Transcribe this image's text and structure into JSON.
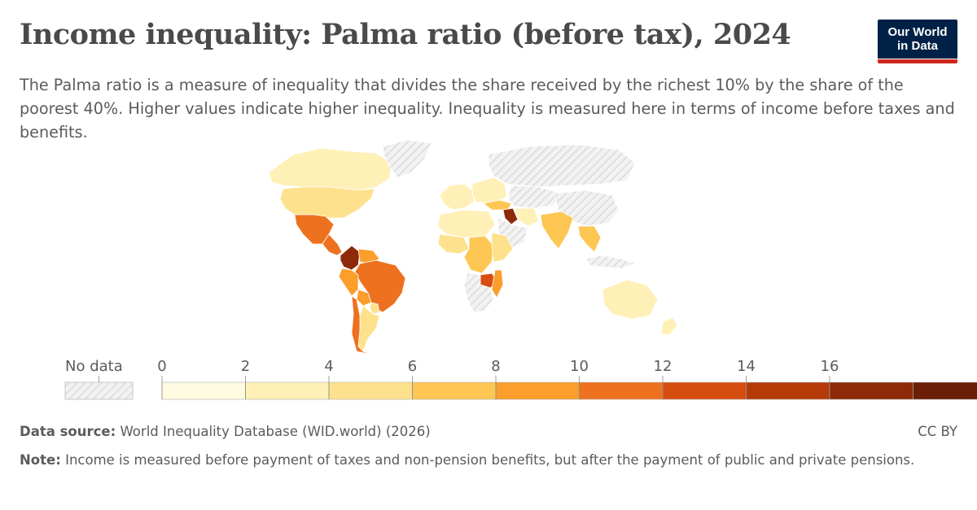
{
  "header": {
    "title": "Income inequality: Palma ratio (before tax), 2024",
    "subtitle": "The Palma ratio is a measure of inequality that divides the share received by the richest 10% by the share of the poorest 40%. Higher values indicate higher inequality. Inequality is measured here in terms of income before taxes and benefits."
  },
  "logo": {
    "line1": "Our World",
    "line2": "in Data",
    "bg_color": "#002147",
    "accent_color": "#ce261e"
  },
  "legend": {
    "no_data_label": "No data",
    "ticks": [
      "0",
      "2",
      "4",
      "6",
      "8",
      "10",
      "12",
      "14",
      "16"
    ],
    "bin_colors": [
      "#fffbe0",
      "#fff0b7",
      "#fee18d",
      "#fec652",
      "#fb9e2c",
      "#ee7120",
      "#d64d0f",
      "#b53a08",
      "#8e2a09",
      "#6b1f06"
    ]
  },
  "footer": {
    "source_label": "Data source:",
    "source_text": " World Inequality Database (WID.world) (2026)",
    "license": "CC BY",
    "note_label": "Note:",
    "note_text": " Income is measured before payment of taxes and non-pension benefits, but after the payment of public and private pensions."
  },
  "chart_data": {
    "type": "choropleth",
    "year": "2024",
    "scale": {
      "min": 0,
      "max": 16,
      "bin_width": 2,
      "open_ended_above": true
    },
    "regions": [
      {
        "name": "Canada",
        "value": 3.2
      },
      {
        "name": "United States",
        "value": 4.8
      },
      {
        "name": "Greenland",
        "value": null
      },
      {
        "name": "Mexico",
        "value": 11.5
      },
      {
        "name": "Central America",
        "value": 11
      },
      {
        "name": "Colombia",
        "value": 17
      },
      {
        "name": "Venezuela",
        "value": 9
      },
      {
        "name": "Brazil",
        "value": 10.5
      },
      {
        "name": "Peru",
        "value": 9
      },
      {
        "name": "Bolivia",
        "value": 8
      },
      {
        "name": "Paraguay",
        "value": 5
      },
      {
        "name": "Argentina",
        "value": 4.5
      },
      {
        "name": "Chile",
        "value": 10.5
      },
      {
        "name": "Western Europe",
        "value": 3.5
      },
      {
        "name": "Eastern Europe",
        "value": 3.5
      },
      {
        "name": "Russia",
        "value": null
      },
      {
        "name": "Turkey",
        "value": 7.5
      },
      {
        "name": "Iraq",
        "value": 17
      },
      {
        "name": "Iran",
        "value": 3.5
      },
      {
        "name": "Arabian Peninsula",
        "value": null
      },
      {
        "name": "Central Asia",
        "value": null
      },
      {
        "name": "China",
        "value": null
      },
      {
        "name": "India",
        "value": 7.8
      },
      {
        "name": "Southeast Asia",
        "value": 6
      },
      {
        "name": "Indonesia",
        "value": null
      },
      {
        "name": "North Africa",
        "value": 3.5
      },
      {
        "name": "West Africa",
        "value": 5
      },
      {
        "name": "Central Africa",
        "value": 7
      },
      {
        "name": "East Africa",
        "value": 4.5
      },
      {
        "name": "Zambia",
        "value": 12
      },
      {
        "name": "Mozambique",
        "value": 9
      },
      {
        "name": "Southern Africa",
        "value": null
      },
      {
        "name": "Australia",
        "value": 3
      },
      {
        "name": "New Zealand",
        "value": 3.5
      }
    ]
  }
}
